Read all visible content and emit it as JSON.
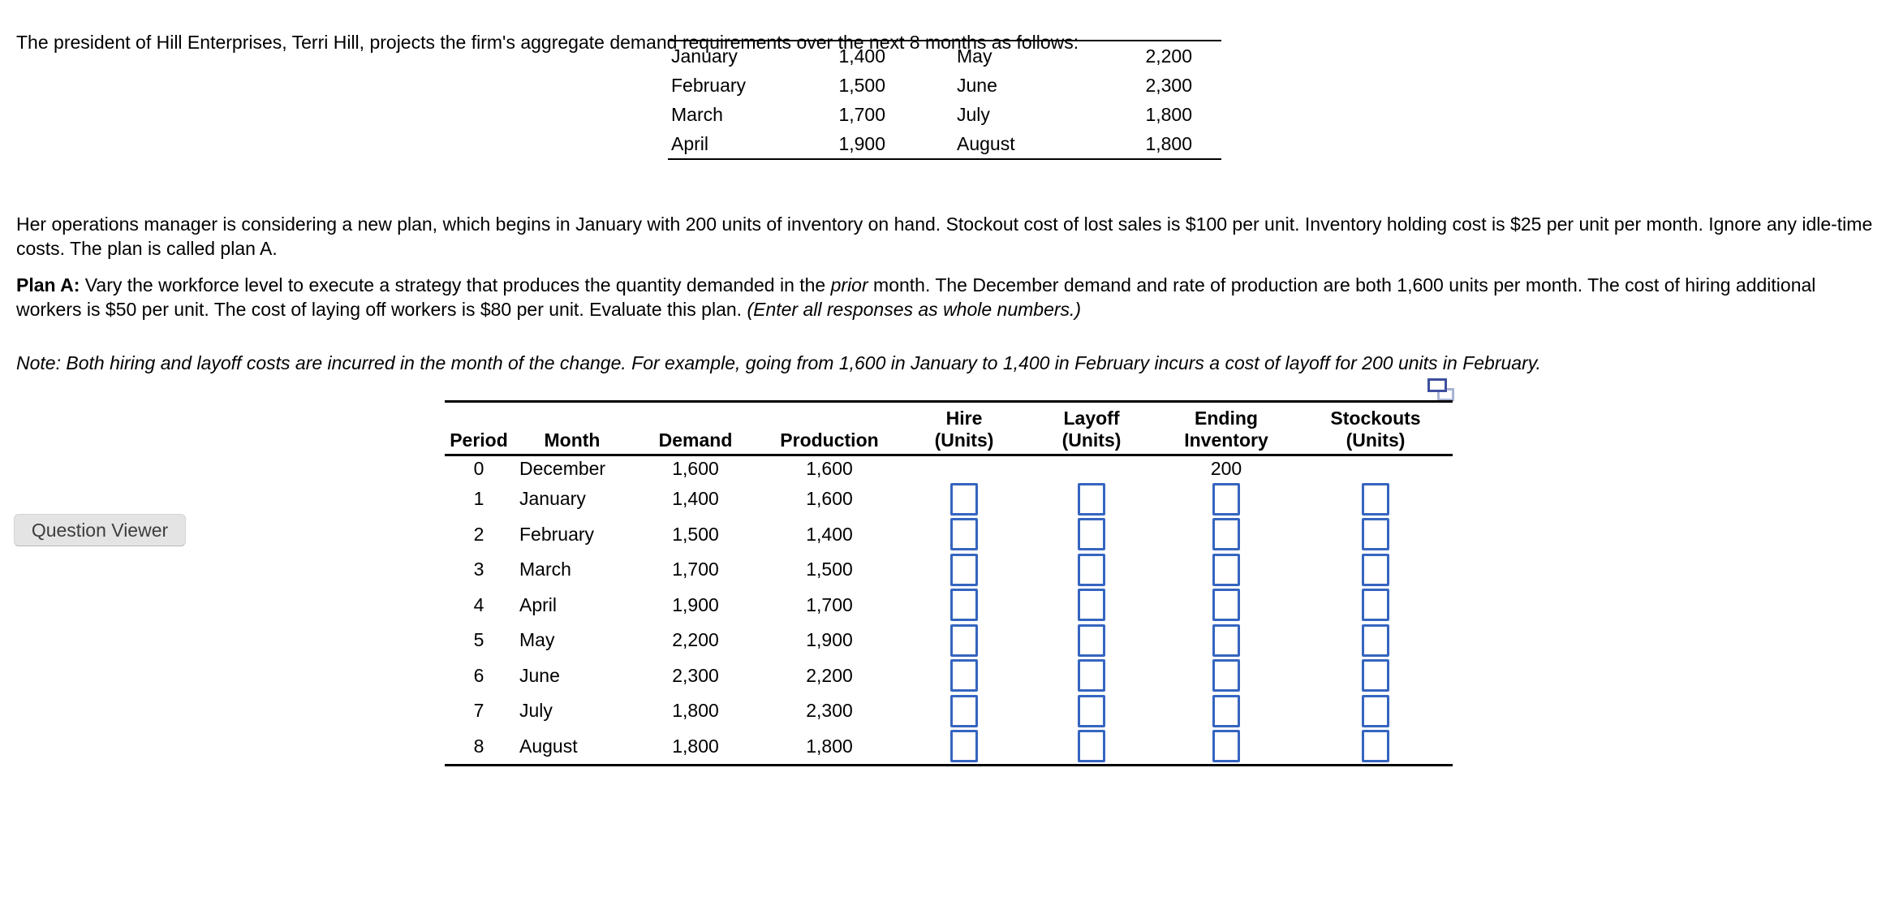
{
  "intro": {
    "paragraph1": "The president of Hill Enterprises, Terri Hill, projects the firm's aggregate demand requirements over the next 8 months as follows:",
    "paragraph2": "Her operations manager is considering a new plan, which begins in January with 200 units of inventory on hand. Stockout cost of lost sales is $100 per unit. Inventory holding cost is $25 per unit per month. Ignore any idle-time costs. The plan is called plan A.",
    "plan_a": {
      "label": "Plan A:",
      "part1": " Vary the workforce level to execute a strategy that produces the quantity demanded in the ",
      "italic1": "prior",
      "part2": " month. The December demand and rate of production are both 1,600 units per month. The cost of hiring additional workers is $50 per unit. The cost of laying off workers is $80 per unit. Evaluate this plan. ",
      "italic2": "(Enter all responses as whole numbers.)"
    },
    "note": "Note: Both hiring and layoff costs are incurred in the month of the change. For example, going from 1,600 in January to 1,400 in February incurs a cost of layoff for 200 units in February."
  },
  "demand_table": {
    "rows": [
      {
        "month_left": "January",
        "value_left": "1,400",
        "month_right": "May",
        "value_right": "2,200"
      },
      {
        "month_left": "February",
        "value_left": "1,500",
        "month_right": "June",
        "value_right": "2,300"
      },
      {
        "month_left": "March",
        "value_left": "1,700",
        "month_right": "July",
        "value_right": "1,800"
      },
      {
        "month_left": "April",
        "value_left": "1,900",
        "month_right": "August",
        "value_right": "1,800"
      }
    ]
  },
  "question_viewer": {
    "label": "Question Viewer"
  },
  "popup_icon": {
    "name": "open-table-in-popup"
  },
  "plan_table": {
    "headers": {
      "period": "Period",
      "month": "Month",
      "demand": "Demand",
      "production": "Production",
      "hire1": "Hire",
      "hire2": "(Units)",
      "layoff1": "Layoff",
      "layoff2": "(Units)",
      "ending1": "Ending",
      "ending2": "Inventory",
      "stockouts1": "Stockouts",
      "stockouts2": "(Units)"
    },
    "initial_row": {
      "period": "0",
      "month": "December",
      "demand": "1,600",
      "production": "1,600",
      "ending_inventory": "200"
    },
    "rows": [
      {
        "period": "1",
        "month": "January",
        "demand": "1,400",
        "production": "1,600"
      },
      {
        "period": "2",
        "month": "February",
        "demand": "1,500",
        "production": "1,400"
      },
      {
        "period": "3",
        "month": "March",
        "demand": "1,700",
        "production": "1,500"
      },
      {
        "period": "4",
        "month": "April",
        "demand": "1,900",
        "production": "1,700"
      },
      {
        "period": "5",
        "month": "May",
        "demand": "2,200",
        "production": "1,900"
      },
      {
        "period": "6",
        "month": "June",
        "demand": "2,300",
        "production": "2,200"
      },
      {
        "period": "7",
        "month": "July",
        "demand": "1,800",
        "production": "2,300"
      },
      {
        "period": "8",
        "month": "August",
        "demand": "1,800",
        "production": "1,800"
      }
    ],
    "input_values": {
      "hire": "",
      "layoff": "",
      "ending_inventory": "",
      "stockouts": ""
    }
  },
  "colors": {
    "input_border": "#3565c0",
    "button_bg": "#e4e4e4",
    "button_text": "#3d3d3d",
    "icon_front_border": "#3e4f9e",
    "icon_back_border": "#a9b3d4",
    "table_border": "#000000"
  }
}
